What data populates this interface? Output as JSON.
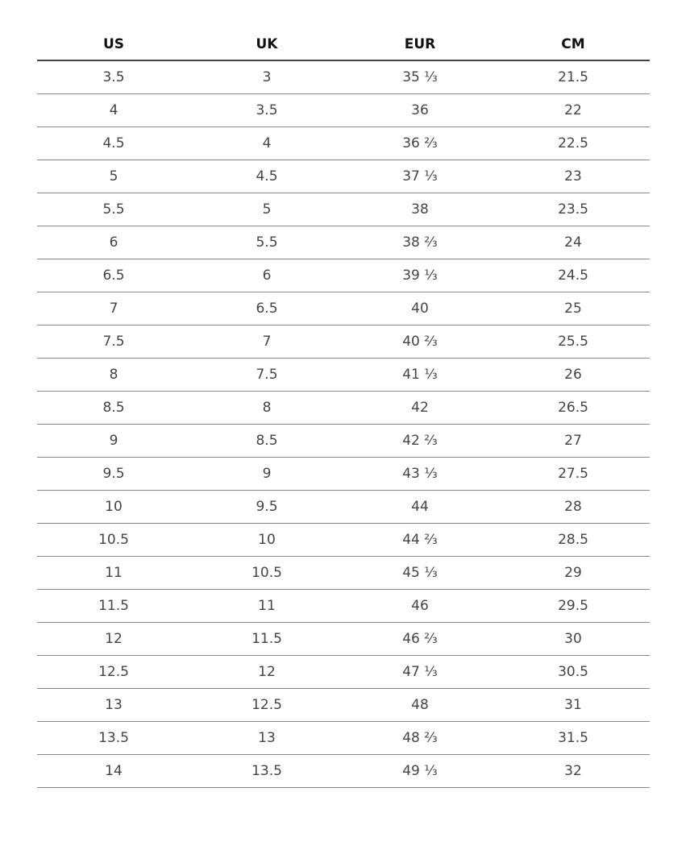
{
  "headers": [
    "US",
    "UK",
    "EUR",
    "CM"
  ],
  "rows": [
    [
      "3.5",
      "3",
      "35 ⅓",
      "21.5"
    ],
    [
      "4",
      "3.5",
      "36",
      "22"
    ],
    [
      "4.5",
      "4",
      "36 ⅔",
      "22.5"
    ],
    [
      "5",
      "4.5",
      "37 ⅓",
      "23"
    ],
    [
      "5.5",
      "5",
      "38",
      "23.5"
    ],
    [
      "6",
      "5.5",
      "38 ⅔",
      "24"
    ],
    [
      "6.5",
      "6",
      "39 ⅓",
      "24.5"
    ],
    [
      "7",
      "6.5",
      "40",
      "25"
    ],
    [
      "7.5",
      "7",
      "40 ⅔",
      "25.5"
    ],
    [
      "8",
      "7.5",
      "41 ⅓",
      "26"
    ],
    [
      "8.5",
      "8",
      "42",
      "26.5"
    ],
    [
      "9",
      "8.5",
      "42 ⅔",
      "27"
    ],
    [
      "9.5",
      "9",
      "43 ⅓",
      "27.5"
    ],
    [
      "10",
      "9.5",
      "44",
      "28"
    ],
    [
      "10.5",
      "10",
      "44 ⅔",
      "28.5"
    ],
    [
      "11",
      "10.5",
      "45 ⅓",
      "29"
    ],
    [
      "11.5",
      "11",
      "46",
      "29.5"
    ],
    [
      "12",
      "11.5",
      "46 ⅔",
      "30"
    ],
    [
      "12.5",
      "12",
      "47 ⅓",
      "30.5"
    ],
    [
      "13",
      "12.5",
      "48",
      "31"
    ],
    [
      "13.5",
      "13",
      "48 ⅔",
      "31.5"
    ],
    [
      "14",
      "13.5",
      "49 ⅓",
      "32"
    ]
  ]
}
